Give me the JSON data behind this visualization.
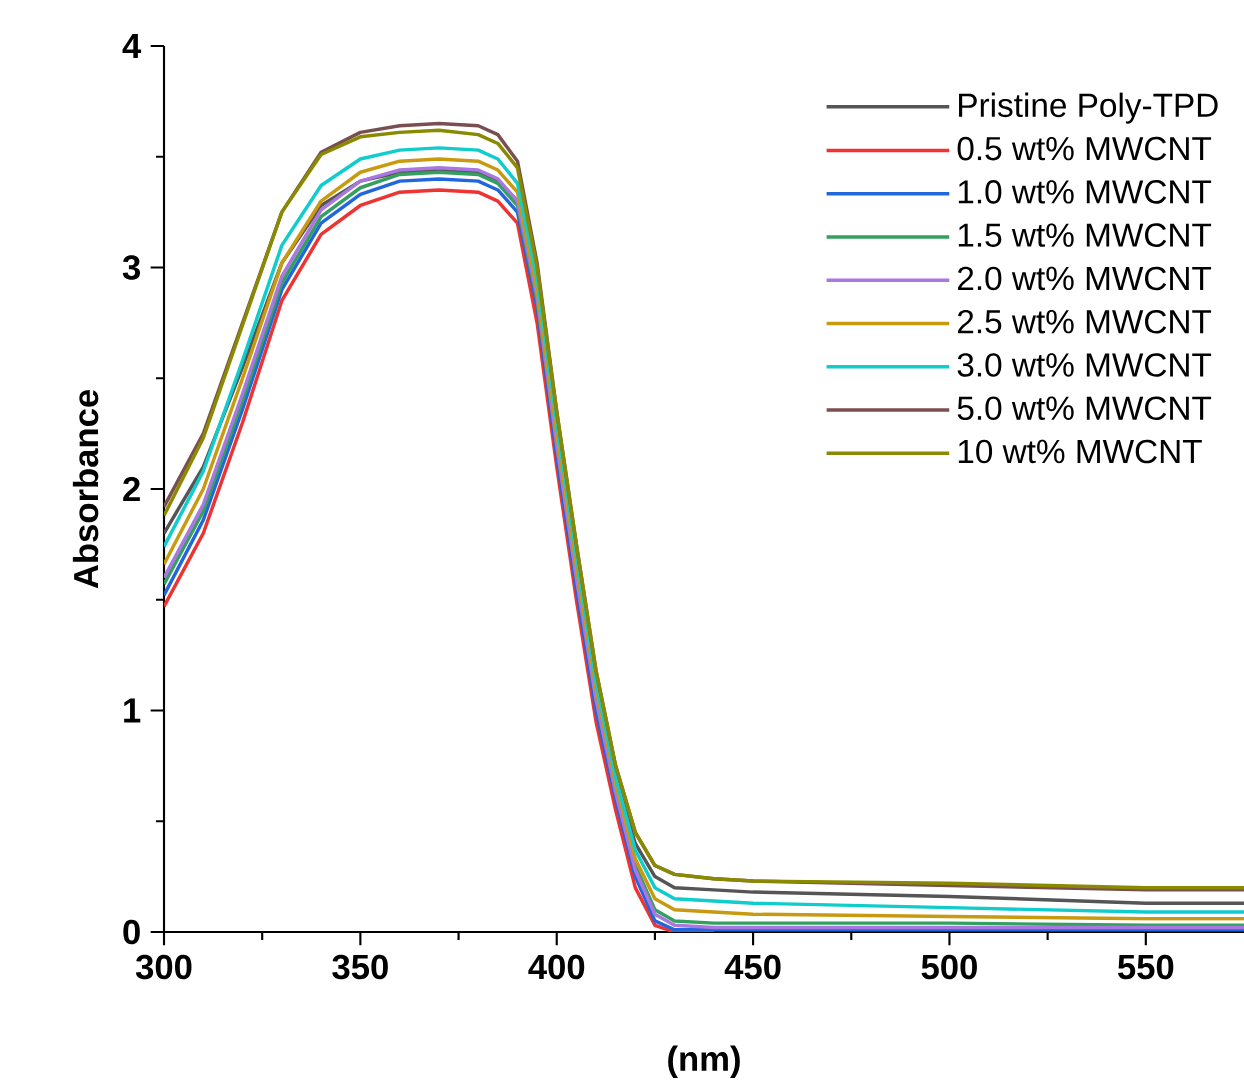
{
  "chart_data": {
    "type": "line",
    "xlabel": "(nm)",
    "ylabel": "Absorbance",
    "x": [
      300,
      310,
      320,
      330,
      340,
      350,
      360,
      370,
      380,
      385,
      390,
      395,
      400,
      405,
      410,
      415,
      420,
      425,
      430,
      440,
      450,
      500,
      550,
      575
    ],
    "xlim": [
      300,
      575
    ],
    "ylim": [
      0,
      4
    ],
    "xticks": [
      300,
      350,
      400,
      450,
      500,
      550
    ],
    "yticks": [
      0,
      1,
      2,
      3,
      4
    ],
    "legend": "top right",
    "series": [
      {
        "name": "Pristine Poly-TPD",
        "color": "#555555",
        "values": [
          1.8,
          2.1,
          2.55,
          3.02,
          3.28,
          3.39,
          3.43,
          3.44,
          3.43,
          3.39,
          3.3,
          2.88,
          2.25,
          1.65,
          1.1,
          0.7,
          0.4,
          0.25,
          0.2,
          0.19,
          0.18,
          0.16,
          0.13,
          0.13
        ]
      },
      {
        "name": "0.5 wt% MWCNT",
        "color": "#ee3333",
        "values": [
          1.47,
          1.8,
          2.3,
          2.85,
          3.15,
          3.28,
          3.34,
          3.35,
          3.34,
          3.3,
          3.2,
          2.75,
          2.1,
          1.5,
          0.95,
          0.55,
          0.2,
          0.03,
          0,
          0,
          null,
          null,
          null,
          null
        ]
      },
      {
        "name": "1.0 wt% MWCNT",
        "color": "#2266dd",
        "values": [
          1.52,
          1.86,
          2.36,
          2.9,
          3.2,
          3.33,
          3.39,
          3.4,
          3.39,
          3.35,
          3.25,
          2.82,
          2.15,
          1.55,
          1.0,
          0.6,
          0.25,
          0.05,
          0.01,
          0.01,
          0.01,
          0.01,
          0.01,
          0.01
        ]
      },
      {
        "name": "1.5 wt% MWCNT",
        "color": "#33a060",
        "values": [
          1.57,
          1.9,
          2.4,
          2.93,
          3.23,
          3.36,
          3.42,
          3.43,
          3.42,
          3.38,
          3.28,
          2.85,
          2.2,
          1.6,
          1.05,
          0.63,
          0.3,
          0.1,
          0.05,
          0.04,
          0.04,
          0.04,
          0.03,
          0.03
        ]
      },
      {
        "name": "2.0 wt% MWCNT",
        "color": "#aa77e0",
        "values": [
          1.6,
          1.93,
          2.43,
          2.96,
          3.26,
          3.39,
          3.44,
          3.45,
          3.44,
          3.4,
          3.3,
          2.87,
          2.2,
          1.6,
          1.05,
          0.63,
          0.28,
          0.08,
          0.03,
          0.02,
          0.02,
          0.02,
          0.02,
          0.02
        ]
      },
      {
        "name": "2.5 wt% MWCNT",
        "color": "#c89a10",
        "values": [
          1.66,
          2.0,
          2.5,
          3.02,
          3.3,
          3.43,
          3.48,
          3.49,
          3.48,
          3.44,
          3.34,
          2.9,
          2.25,
          1.65,
          1.1,
          0.67,
          0.33,
          0.15,
          0.1,
          0.09,
          0.08,
          0.07,
          0.06,
          0.06
        ]
      },
      {
        "name": "3.0 wt% MWCNT",
        "color": "#11cccc",
        "values": [
          1.74,
          2.08,
          2.58,
          3.1,
          3.37,
          3.49,
          3.53,
          3.54,
          3.53,
          3.49,
          3.38,
          2.95,
          2.3,
          1.7,
          1.13,
          0.7,
          0.37,
          0.2,
          0.15,
          0.14,
          0.13,
          0.11,
          0.09,
          0.09
        ]
      },
      {
        "name": "5.0 wt% MWCNT",
        "color": "#7a4f4f",
        "values": [
          1.92,
          2.25,
          2.75,
          3.25,
          3.52,
          3.61,
          3.64,
          3.65,
          3.64,
          3.6,
          3.48,
          3.02,
          2.35,
          1.75,
          1.18,
          0.75,
          0.45,
          0.3,
          0.26,
          0.24,
          0.23,
          0.21,
          0.19,
          0.19
        ]
      },
      {
        "name": "10 wt% MWCNT",
        "color": "#8a8a00",
        "values": [
          1.88,
          2.23,
          2.74,
          3.25,
          3.51,
          3.59,
          3.61,
          3.62,
          3.6,
          3.56,
          3.45,
          3.0,
          2.35,
          1.75,
          1.18,
          0.75,
          0.45,
          0.3,
          0.26,
          0.24,
          0.23,
          0.22,
          0.2,
          0.2
        ]
      }
    ]
  }
}
